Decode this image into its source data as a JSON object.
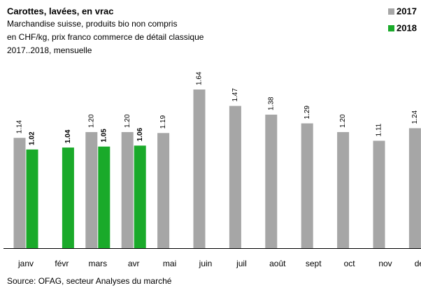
{
  "chart_data": {
    "type": "bar",
    "title": "Carottes, lavées, en vrac",
    "subtitle": [
      "Marchandise suisse, produits bio non compris",
      "en CHF/kg,  prix franco commerce de détail classique",
      "2017..2018, mensuelle"
    ],
    "source": "Source:  OFAG, secteur Analyses du marché",
    "categories": [
      "janv",
      "févr",
      "mars",
      "avr",
      "mai",
      "juin",
      "juil",
      "août",
      "sept",
      "oct",
      "nov",
      "déc"
    ],
    "series": [
      {
        "name": "2017",
        "color": "#a6a6a6",
        "values": [
          1.14,
          null,
          1.2,
          1.2,
          1.19,
          1.64,
          1.47,
          1.38,
          1.29,
          1.2,
          1.11,
          1.24
        ],
        "value_labels": [
          "1.14",
          null,
          "1.20",
          "1.20",
          "1.19",
          "1.64",
          "1.47",
          "1.38",
          "1.29",
          "1.20",
          "1.11",
          "1.24"
        ]
      },
      {
        "name": "2018",
        "color": "#1aaa2a",
        "values": [
          1.02,
          1.04,
          1.05,
          1.06,
          null,
          null,
          null,
          null,
          null,
          null,
          null,
          null
        ],
        "value_labels": [
          "1.02",
          "1.04",
          "1.05",
          "1.06",
          null,
          null,
          null,
          null,
          null,
          null,
          null,
          null
        ]
      }
    ],
    "legend": "top-right"
  }
}
